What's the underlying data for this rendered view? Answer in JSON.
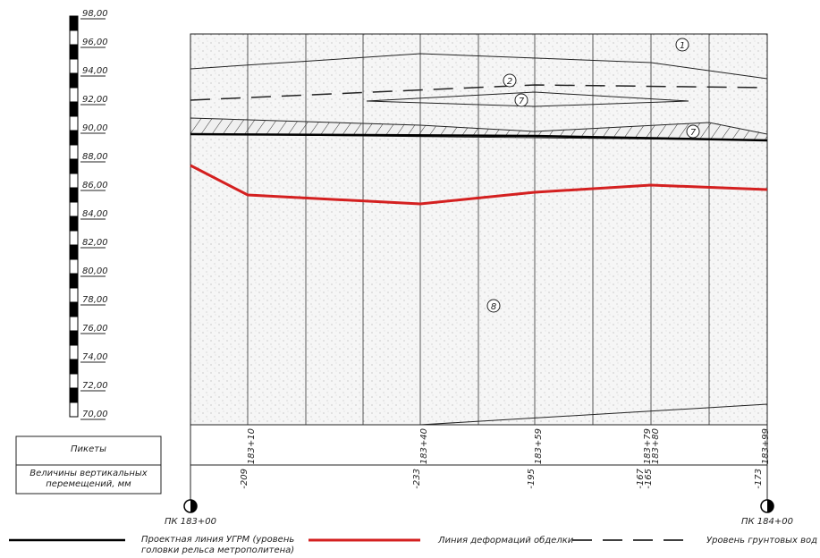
{
  "scale": {
    "labels": [
      "98,00",
      "96,00",
      "94,00",
      "92,00",
      "90,00",
      "88,00",
      "86,00",
      "84,00",
      "82,00",
      "80,00",
      "78,00",
      "76,00",
      "74,00",
      "72,00",
      "70,00"
    ]
  },
  "profile": {
    "layer_labels": [
      "1",
      "2",
      "7",
      "7",
      "8"
    ]
  },
  "table": {
    "row_headers": [
      "Пикеты",
      "Величины вертикальных перемещений, мм"
    ],
    "pickets": [
      "183+10",
      "183+40",
      "183+59",
      "183+79",
      "183+80",
      "183+99"
    ],
    "displacements": [
      "-209",
      "-233",
      "-195",
      "-167",
      "-165",
      "-173"
    ]
  },
  "markers": [
    "ПК 183+00",
    "ПК 184+00"
  ],
  "legend": [
    "Проектная линия УГРМ (уровень головки рельса метрополитена)",
    "Линия деформаций обделки",
    "Уровень грунтовых вод"
  ]
}
